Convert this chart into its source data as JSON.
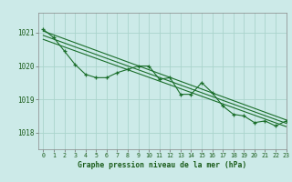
{
  "title": "Graphe pression niveau de la mer (hPa)",
  "bg_color": "#cceae8",
  "grid_color": "#aad4cc",
  "line_color": "#1a6e2a",
  "xlim": [
    -0.5,
    23
  ],
  "ylim": [
    1017.5,
    1021.6
  ],
  "yticks": [
    1018,
    1019,
    1020,
    1021
  ],
  "xtick_labels": [
    "0",
    "1",
    "2",
    "3",
    "4",
    "5",
    "6",
    "7",
    "8",
    "9",
    "10",
    "11",
    "12",
    "13",
    "14",
    "15",
    "16",
    "17",
    "18",
    "19",
    "20",
    "21",
    "22",
    "23"
  ],
  "main_series": [
    [
      0,
      1021.1
    ],
    [
      1,
      1020.85
    ],
    [
      2,
      1020.45
    ],
    [
      3,
      1020.05
    ],
    [
      4,
      1019.75
    ],
    [
      5,
      1019.65
    ],
    [
      6,
      1019.65
    ],
    [
      7,
      1019.8
    ],
    [
      8,
      1019.9
    ],
    [
      9,
      1020.0
    ],
    [
      10,
      1020.0
    ],
    [
      11,
      1019.6
    ],
    [
      12,
      1019.65
    ],
    [
      13,
      1019.15
    ],
    [
      14,
      1019.15
    ],
    [
      15,
      1019.5
    ],
    [
      16,
      1019.2
    ],
    [
      17,
      1018.8
    ],
    [
      18,
      1018.55
    ],
    [
      19,
      1018.5
    ],
    [
      20,
      1018.3
    ],
    [
      21,
      1018.35
    ],
    [
      22,
      1018.2
    ],
    [
      23,
      1018.35
    ]
  ],
  "trend_line1": [
    [
      0,
      1021.05
    ],
    [
      23,
      1018.38
    ]
  ],
  "trend_line2": [
    [
      0,
      1020.92
    ],
    [
      23,
      1018.28
    ]
  ],
  "trend_line3": [
    [
      0,
      1020.8
    ],
    [
      23,
      1018.18
    ]
  ]
}
